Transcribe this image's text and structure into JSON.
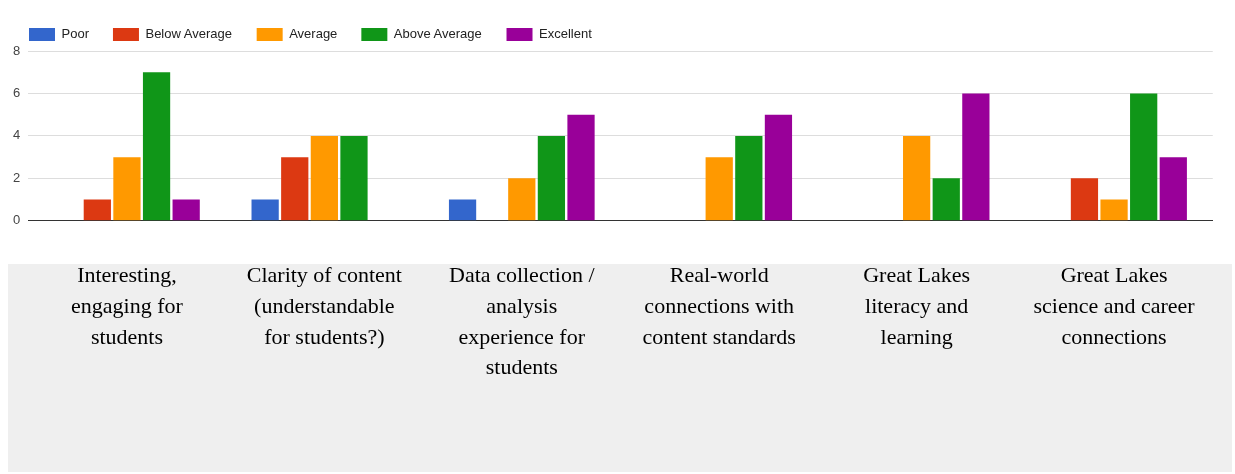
{
  "chart_data": {
    "type": "bar",
    "categories": [
      "Interesting, engaging for students",
      "Clarity of content (understandable for students?)",
      "Data collection / analysis experience for students",
      "Real-world connections with content standards",
      "Great Lakes literacy and learning",
      "Great Lakes science and career connections"
    ],
    "series": [
      {
        "name": "Poor",
        "color": "#3366cc",
        "values": [
          0,
          1,
          1,
          0,
          0,
          0
        ]
      },
      {
        "name": "Below Average",
        "color": "#dc3912",
        "values": [
          1,
          3,
          0,
          0,
          0,
          2
        ]
      },
      {
        "name": "Average",
        "color": "#ff9900",
        "values": [
          3,
          4,
          2,
          3,
          4,
          1
        ]
      },
      {
        "name": "Above Average",
        "color": "#109618",
        "values": [
          7,
          4,
          4,
          4,
          2,
          6
        ]
      },
      {
        "name": "Excellent",
        "color": "#990099",
        "values": [
          1,
          0,
          5,
          5,
          6,
          3
        ]
      }
    ],
    "ylim": [
      0,
      8
    ],
    "yticks": [
      0,
      2,
      4,
      6,
      8
    ],
    "grid": "y",
    "legend": "top left"
  }
}
